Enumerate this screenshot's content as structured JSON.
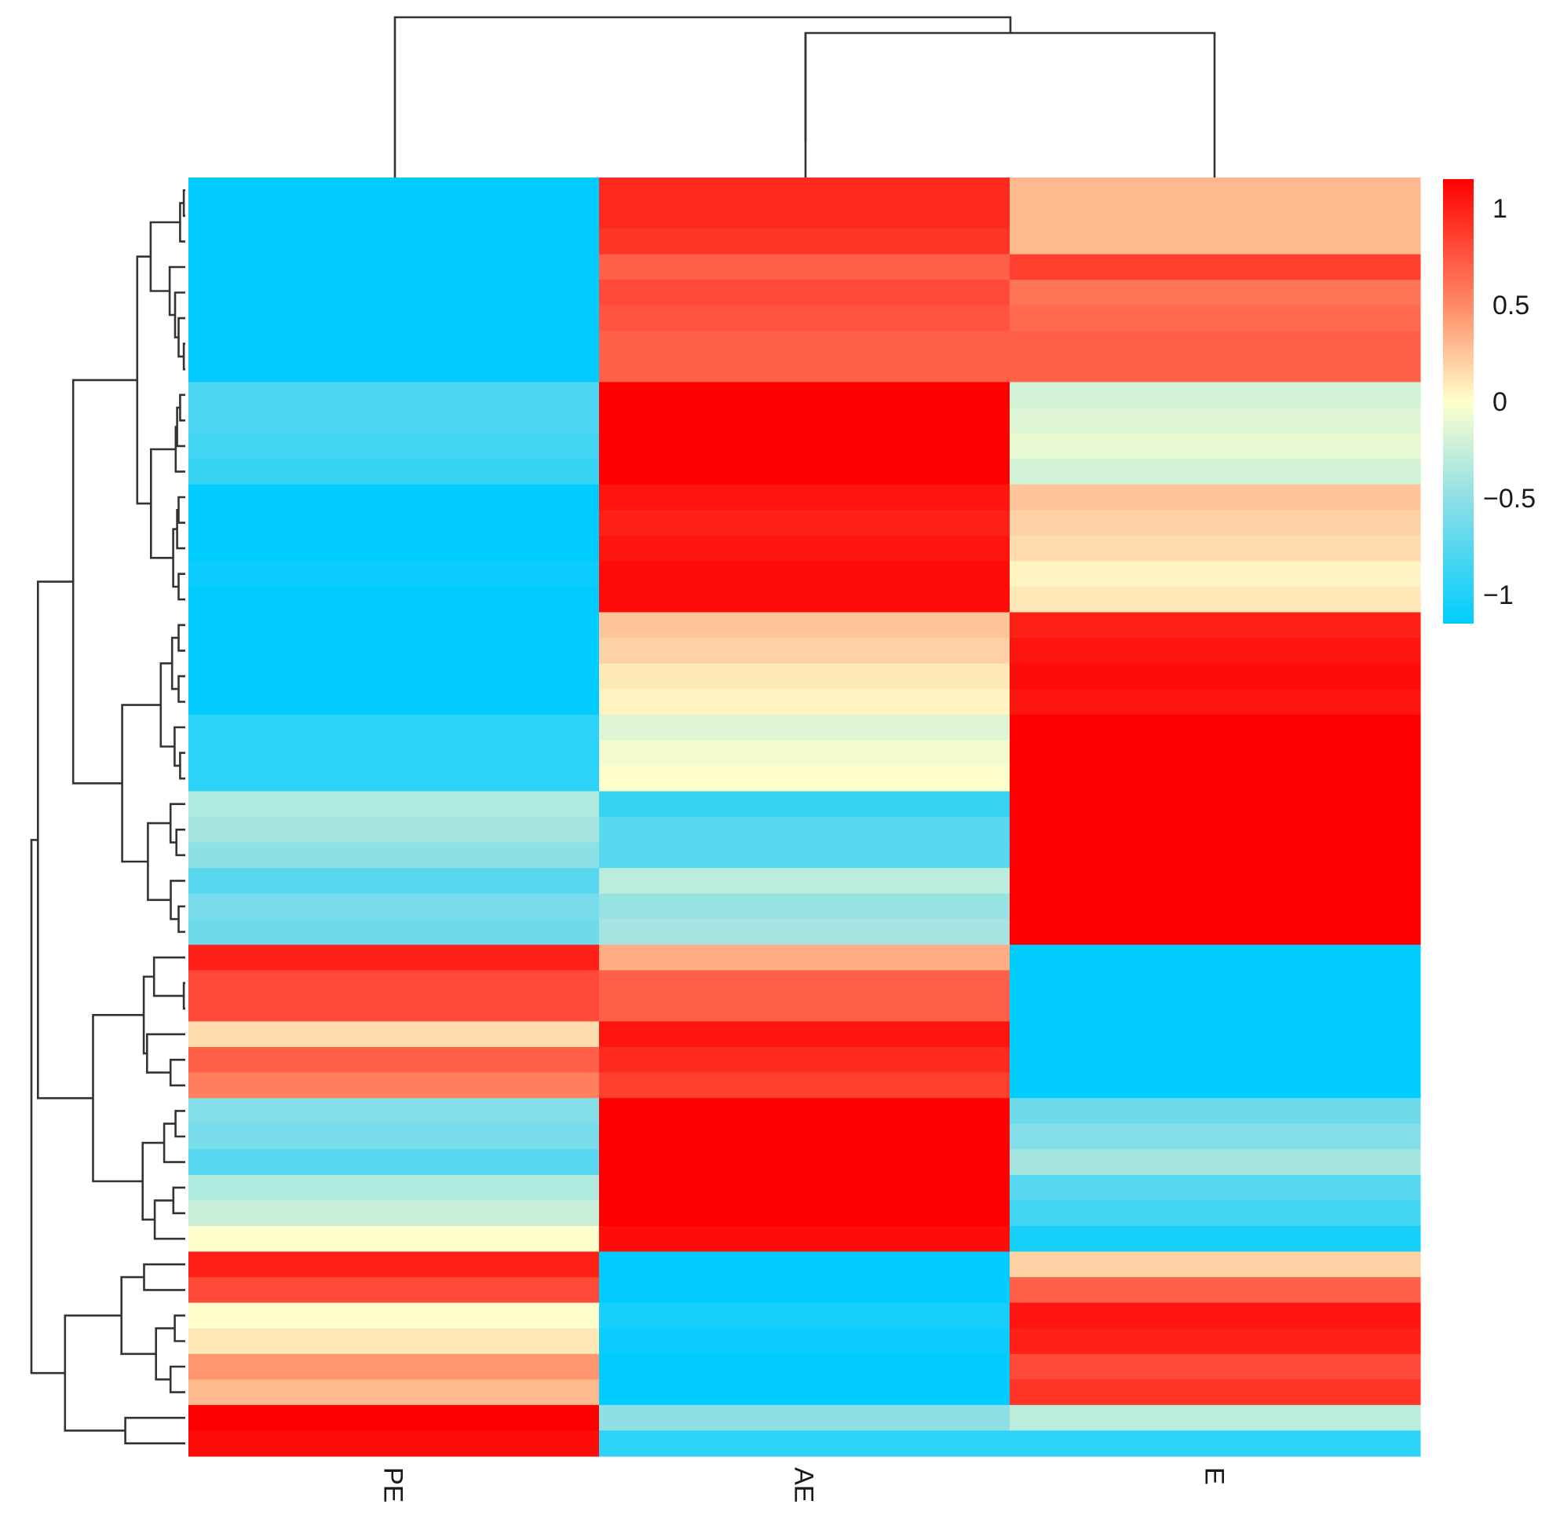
{
  "chart_data": {
    "type": "heatmap",
    "title": "",
    "columns": [
      "PE",
      "AE",
      "E"
    ],
    "row_count": 50,
    "colorscale": {
      "min": -1.15,
      "max": 1.15,
      "stops": [
        {
          "value": -1.15,
          "color": "#00CCFF"
        },
        {
          "value": -0.5,
          "color": "#8EDFE6"
        },
        {
          "value": 0,
          "color": "#FFFFCC"
        },
        {
          "value": 0.5,
          "color": "#FF8A66"
        },
        {
          "value": 1.15,
          "color": "#FF0000"
        }
      ],
      "ticks": [
        {
          "value": 1,
          "label": "1"
        },
        {
          "value": 0.5,
          "label": "0.5"
        },
        {
          "value": 0,
          "label": "0"
        },
        {
          "value": -0.5,
          "label": "−0.5"
        },
        {
          "value": -1,
          "label": "−1"
        }
      ]
    },
    "values": [
      [
        -1.15,
        0.95,
        0.3
      ],
      [
        -1.15,
        0.95,
        0.3
      ],
      [
        -1.15,
        0.9,
        0.3
      ],
      [
        -1.15,
        0.7,
        0.85
      ],
      [
        -1.15,
        0.8,
        0.6
      ],
      [
        -1.15,
        0.75,
        0.65
      ],
      [
        -1.15,
        0.7,
        0.7
      ],
      [
        -1.15,
        0.7,
        0.7
      ],
      [
        -0.8,
        1.15,
        -0.2
      ],
      [
        -0.8,
        1.15,
        -0.15
      ],
      [
        -0.85,
        1.15,
        -0.1
      ],
      [
        -0.9,
        1.15,
        -0.2
      ],
      [
        -1.15,
        1.05,
        0.25
      ],
      [
        -1.15,
        1.0,
        0.2
      ],
      [
        -1.15,
        1.05,
        0.15
      ],
      [
        -1.1,
        1.1,
        0.05
      ],
      [
        -1.15,
        1.1,
        0.1
      ],
      [
        -1.15,
        0.25,
        1.0
      ],
      [
        -1.15,
        0.2,
        1.05
      ],
      [
        -1.15,
        0.1,
        1.1
      ],
      [
        -1.15,
        0.05,
        1.05
      ],
      [
        -0.95,
        -0.15,
        1.15
      ],
      [
        -0.95,
        -0.05,
        1.15
      ],
      [
        -0.95,
        0.0,
        1.15
      ],
      [
        -0.35,
        -0.9,
        1.15
      ],
      [
        -0.4,
        -0.75,
        1.15
      ],
      [
        -0.5,
        -0.75,
        1.15
      ],
      [
        -0.75,
        -0.3,
        1.15
      ],
      [
        -0.6,
        -0.45,
        1.15
      ],
      [
        -0.65,
        -0.4,
        1.15
      ],
      [
        1.0,
        0.35,
        -1.15
      ],
      [
        0.8,
        0.7,
        -1.15
      ],
      [
        0.8,
        0.7,
        -1.15
      ],
      [
        0.15,
        1.05,
        -1.15
      ],
      [
        0.7,
        0.95,
        -1.15
      ],
      [
        0.55,
        0.85,
        -1.15
      ],
      [
        -0.55,
        1.15,
        -0.65
      ],
      [
        -0.6,
        1.15,
        -0.55
      ],
      [
        -0.75,
        1.15,
        -0.4
      ],
      [
        -0.35,
        1.15,
        -0.75
      ],
      [
        -0.25,
        1.15,
        -0.85
      ],
      [
        0.0,
        1.1,
        -1.05
      ],
      [
        1.0,
        -1.15,
        0.2
      ],
      [
        0.8,
        -1.15,
        0.7
      ],
      [
        0.0,
        -1.05,
        1.05
      ],
      [
        0.1,
        -1.1,
        1.0
      ],
      [
        0.45,
        -1.15,
        0.8
      ],
      [
        0.3,
        -1.15,
        0.9
      ],
      [
        1.15,
        -0.5,
        -0.3
      ],
      [
        1.1,
        -0.95,
        -0.95
      ]
    ]
  }
}
